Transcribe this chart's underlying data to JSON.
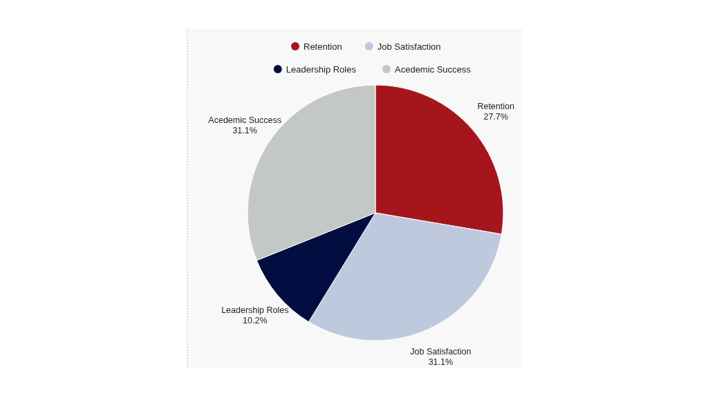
{
  "chart_data": {
    "type": "pie",
    "categories": [
      "Retention",
      "Job Satisfaction",
      "Leadership Roles",
      "Acedemic Success"
    ],
    "values": [
      27.7,
      31.1,
      10.2,
      31.1
    ],
    "colors": [
      "#a5161c",
      "#bfc9de",
      "#020e42",
      "#c3c8c5"
    ],
    "value_labels": [
      "27.7%",
      "31.1%",
      "10.2%",
      "31.1%"
    ],
    "legend": "top"
  }
}
